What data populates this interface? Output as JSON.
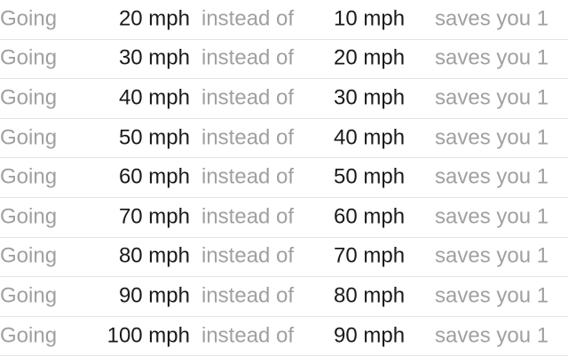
{
  "labels": {
    "going": "Going",
    "instead_of": "instead of",
    "saves_you": "saves you 1"
  },
  "rows": [
    {
      "faster": "20 mph",
      "slower": "10 mph"
    },
    {
      "faster": "30 mph",
      "slower": "20 mph"
    },
    {
      "faster": "40 mph",
      "slower": "30 mph"
    },
    {
      "faster": "50 mph",
      "slower": "40 mph"
    },
    {
      "faster": "60 mph",
      "slower": "50 mph"
    },
    {
      "faster": "70 mph",
      "slower": "60 mph"
    },
    {
      "faster": "80 mph",
      "slower": "70 mph"
    },
    {
      "faster": "90 mph",
      "slower": "80 mph"
    },
    {
      "faster": "100 mph",
      "slower": "90 mph"
    }
  ]
}
